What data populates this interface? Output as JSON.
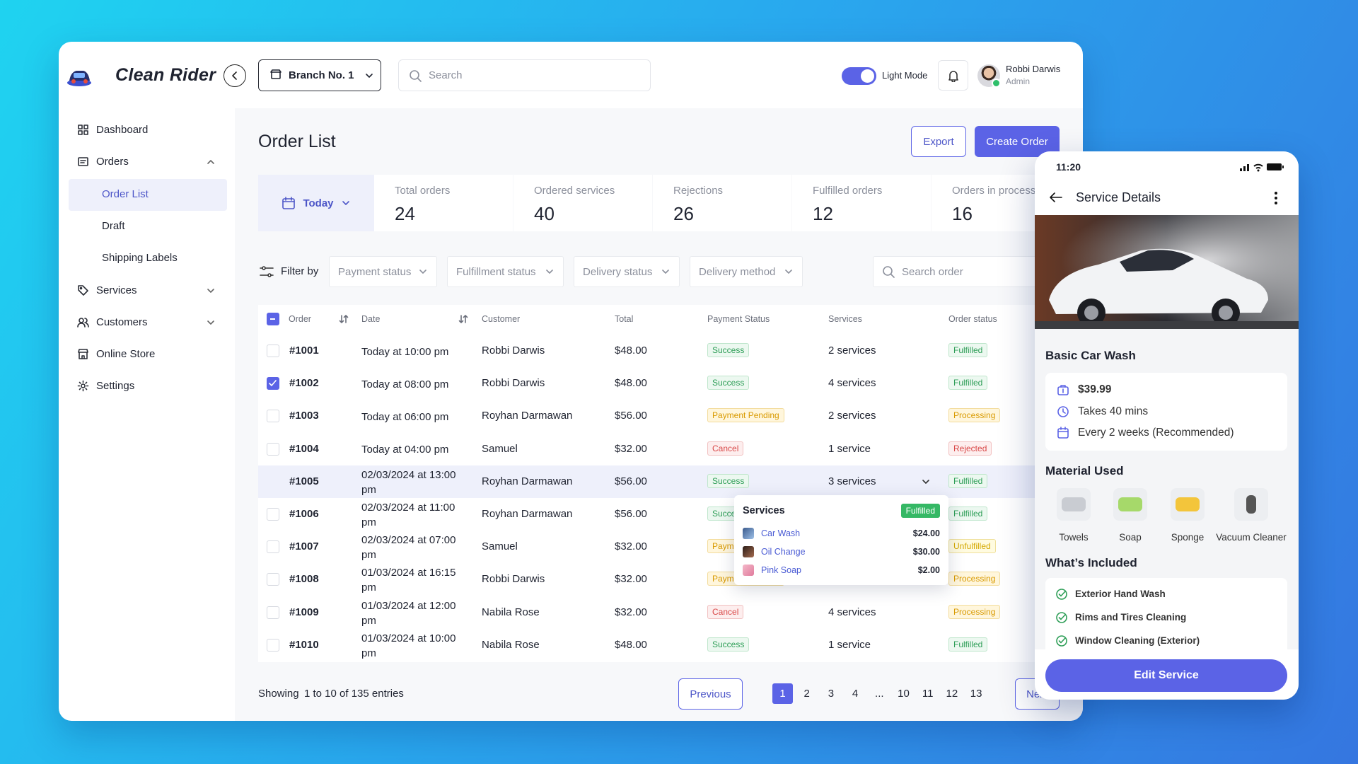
{
  "app": {
    "logo": "Clean Rider",
    "branch": "Branch No. 1",
    "search_placeholder": "Search",
    "mode": "Light Mode",
    "user": {
      "name": "Robbi Darwis",
      "role": "Admin"
    }
  },
  "sidebar": {
    "items": [
      {
        "label": "Dashboard"
      },
      {
        "label": "Orders",
        "children": [
          "Order List",
          "Draft",
          "Shipping Labels"
        ]
      },
      {
        "label": "Services"
      },
      {
        "label": "Customers"
      },
      {
        "label": "Online Store"
      },
      {
        "label": "Settings"
      }
    ]
  },
  "page": {
    "title": "Order List",
    "actions": [
      "Export",
      "Create Order"
    ],
    "period": "Today",
    "stats": [
      {
        "label": "Total orders",
        "value": 24
      },
      {
        "label": "Ordered services",
        "value": 40
      },
      {
        "label": "Rejections",
        "value": 26
      },
      {
        "label": "Fulfilled orders",
        "value": 12
      },
      {
        "label": "Orders in process",
        "value": 16
      }
    ],
    "filter_label": "Filter by",
    "filters": [
      "Payment status",
      "Fulfillment status",
      "Delivery status",
      "Delivery method"
    ],
    "search_order": "Search order",
    "table": {
      "columns": [
        "Order",
        "Date",
        "Customer",
        "Total",
        "Payment Status",
        "Services",
        "Order status"
      ],
      "rows": [
        {
          "order": "#1001",
          "date": "Today at 10:00 pm",
          "customer": "Robbi Darwis",
          "total": "$48.00",
          "payment": "Success",
          "payment_color": "green",
          "services": "2 services",
          "status": "Fulfilled",
          "status_color": "green"
        },
        {
          "order": "#1002",
          "date": "Today at 08:00 pm",
          "customer": "Robbi Darwis",
          "total": "$48.00",
          "payment": "Success",
          "payment_color": "green",
          "services": "4 services",
          "status": "Fulfilled",
          "status_color": "green",
          "checked": true
        },
        {
          "order": "#1003",
          "date": "Today at 06:00 pm",
          "customer": "Royhan Darmawan",
          "total": "$56.00",
          "payment": "Payment Pending",
          "payment_color": "orange",
          "services": "2 services",
          "status": "Processing",
          "status_color": "orange"
        },
        {
          "order": "#1004",
          "date": "Today at 04:00 pm",
          "customer": "Samuel",
          "total": "$32.00",
          "payment": "Cancel",
          "payment_color": "red",
          "services": "1 service",
          "status": "Rejected",
          "status_color": "red"
        },
        {
          "order": "#1005",
          "date": "02/03/2024 at 13:00 pm",
          "customer": "Royhan Darmawan",
          "total": "$56.00",
          "payment": "Success",
          "payment_color": "green",
          "services": "3 services",
          "status": "Fulfilled",
          "status_color": "green",
          "expanded": true
        },
        {
          "order": "#1006",
          "date": "02/03/2024 at 11:00 pm",
          "customer": "Royhan Darmawan",
          "total": "$56.00",
          "payment": "Success",
          "payment_color": "green",
          "status": "Fulfilled",
          "status_color": "green"
        },
        {
          "order": "#1007",
          "date": "02/03/2024 at 07:00 pm",
          "customer": "Samuel",
          "total": "$32.00",
          "payment": "Payment Pending",
          "payment_color": "orange",
          "status": "Unfulfilled",
          "status_color": "yellow"
        },
        {
          "order": "#1008",
          "date": "01/03/2024 at 16:15 pm",
          "customer": "Robbi Darwis",
          "total": "$32.00",
          "payment": "Payment Pending",
          "payment_color": "orange",
          "status": "Processing",
          "status_color": "orange"
        },
        {
          "order": "#1009",
          "date": "01/03/2024 at 12:00 pm",
          "customer": "Nabila Rose",
          "total": "$32.00",
          "payment": "Cancel",
          "payment_color": "red",
          "services": "4 services",
          "status": "Processing",
          "status_color": "orange"
        },
        {
          "order": "#1010",
          "date": "01/03/2024 at 10:00 pm",
          "customer": "Nabila Rose",
          "total": "$48.00",
          "payment": "Success",
          "payment_color": "green",
          "services": "1 service",
          "status": "Fulfilled",
          "status_color": "green"
        }
      ]
    },
    "popover": {
      "title": "Services",
      "status": "Fulfilled",
      "items": [
        {
          "name": "Car Wash",
          "price": "$24.00"
        },
        {
          "name": "Oil Change",
          "price": "$30.00"
        },
        {
          "name": "Pink Soap",
          "price": "$2.00"
        }
      ]
    },
    "pagination": {
      "summary_label": "Showing",
      "summary": "1 to 10 of 135 entries",
      "previous": "Previous",
      "pages": [
        "1",
        "2",
        "3",
        "4",
        "...",
        "10",
        "11",
        "12",
        "13"
      ],
      "current": 0,
      "next": "Next"
    }
  },
  "phone": {
    "time": "11:20",
    "title": "Service Details",
    "service": "Basic Car Wash",
    "price": "$39.99",
    "duration": "Takes 40 mins",
    "frequency": "Every 2 weeks (Recommended)",
    "materials_title": "Material Used",
    "materials": [
      "Towels",
      "Soap",
      "Sponge",
      "Vacuum Cleaner"
    ],
    "included_title": "What’s Included",
    "included": [
      "Exterior Hand Wash",
      "Rims and Tires Cleaning",
      "Window Cleaning (Exterior)"
    ],
    "button": "Edit Service"
  }
}
